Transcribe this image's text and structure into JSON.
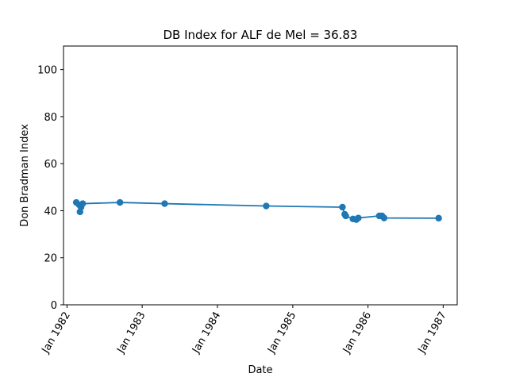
{
  "chart_data": {
    "type": "line",
    "title": "DB Index for ALF de Mel = 36.83",
    "xlabel": "Date",
    "ylabel": "Don Bradman Index",
    "ylim": [
      0,
      110
    ],
    "yticks": [
      0,
      20,
      40,
      60,
      80,
      100
    ],
    "xticks": [
      "Jan 1982",
      "Jan 1983",
      "Jan 1984",
      "Jan 1985",
      "Jan 1986",
      "Jan 1987"
    ],
    "xlim": [
      "1981-12-15",
      "1987-03-10"
    ],
    "grid": false,
    "color": "#1f77b4",
    "series": [
      {
        "points": [
          {
            "x": "1982-02-15",
            "y": 43.5
          },
          {
            "x": "1982-03-01",
            "y": 42.5
          },
          {
            "x": "1982-03-05",
            "y": 39.5
          },
          {
            "x": "1982-03-10",
            "y": 41.5
          },
          {
            "x": "1982-03-18",
            "y": 43.0
          },
          {
            "x": "1982-09-15",
            "y": 43.5
          },
          {
            "x": "1983-04-20",
            "y": 43.0
          },
          {
            "x": "1984-08-25",
            "y": 42.0
          },
          {
            "x": "1985-08-30",
            "y": 41.5
          },
          {
            "x": "1985-09-10",
            "y": 38.5
          },
          {
            "x": "1985-09-15",
            "y": 37.8
          },
          {
            "x": "1985-10-20",
            "y": 36.5
          },
          {
            "x": "1985-11-05",
            "y": 36.2
          },
          {
            "x": "1985-11-15",
            "y": 36.9
          },
          {
            "x": "1986-02-25",
            "y": 37.8
          },
          {
            "x": "1986-03-10",
            "y": 37.8
          },
          {
            "x": "1986-03-20",
            "y": 36.9
          },
          {
            "x": "1986-12-10",
            "y": 36.83
          }
        ]
      }
    ]
  }
}
